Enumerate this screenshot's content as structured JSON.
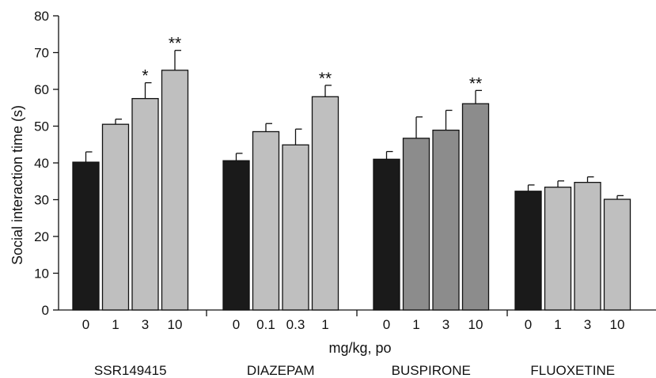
{
  "chart_data": {
    "type": "bar",
    "title": "",
    "xlabel": "mg/kg, po",
    "ylabel": "Social interaction time (s)",
    "ylim": [
      0,
      80
    ],
    "yticks": [
      0,
      10,
      20,
      30,
      40,
      50,
      60,
      70,
      80
    ],
    "groups": [
      {
        "name": "SSR149415",
        "color": "#bfbfbf",
        "control_color": "#1a1a1a",
        "doses": [
          "0",
          "1",
          "3",
          "10"
        ],
        "values": [
          40.2,
          50.5,
          57.5,
          65.2
        ],
        "errors": [
          2.8,
          1.4,
          4.3,
          5.4
        ],
        "significance": [
          "",
          "",
          "*",
          "**"
        ]
      },
      {
        "name": "DIAZEPAM",
        "color": "#bfbfbf",
        "control_color": "#1a1a1a",
        "doses": [
          "0",
          "0.1",
          "0.3",
          "1"
        ],
        "values": [
          40.6,
          48.5,
          44.9,
          58.0
        ],
        "errors": [
          2.0,
          2.2,
          4.3,
          3.1
        ],
        "significance": [
          "",
          "",
          "",
          "**"
        ]
      },
      {
        "name": "BUSPIRONE",
        "color": "#8c8c8c",
        "control_color": "#1a1a1a",
        "doses": [
          "0",
          "1",
          "3",
          "10"
        ],
        "values": [
          41.0,
          46.7,
          48.9,
          56.1
        ],
        "errors": [
          2.1,
          5.8,
          5.4,
          3.6
        ],
        "significance": [
          "",
          "",
          "",
          "**"
        ]
      },
      {
        "name": "FLUOXETINE",
        "color": "#bfbfbf",
        "control_color": "#1a1a1a",
        "doses": [
          "0",
          "1",
          "3",
          "10"
        ],
        "values": [
          32.3,
          33.4,
          34.7,
          30.1
        ],
        "errors": [
          1.7,
          1.7,
          1.5,
          1.0
        ],
        "significance": [
          "",
          "",
          "",
          ""
        ]
      }
    ]
  }
}
